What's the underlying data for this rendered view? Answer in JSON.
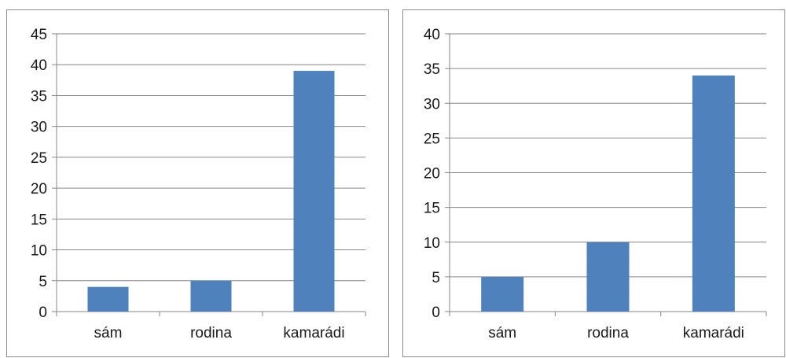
{
  "chart_data": [
    {
      "type": "bar",
      "categories": [
        "sám",
        "rodina",
        "kamarádi"
      ],
      "values": [
        4,
        5,
        39
      ],
      "ylim": [
        0,
        45
      ],
      "yticks": [
        0,
        5,
        10,
        15,
        20,
        25,
        30,
        35,
        40,
        45
      ],
      "grid": true,
      "legend": "none",
      "bar_color": "#4f81bd"
    },
    {
      "type": "bar",
      "categories": [
        "sám",
        "rodina",
        "kamarádi"
      ],
      "values": [
        5,
        10,
        34
      ],
      "ylim": [
        0,
        40
      ],
      "yticks": [
        0,
        5,
        10,
        15,
        20,
        25,
        30,
        35,
        40
      ],
      "grid": true,
      "legend": "none",
      "bar_color": "#4f81bd"
    }
  ],
  "colors": {
    "grid": "#868686",
    "axis": "#868686",
    "border": "#8c8c8c"
  }
}
